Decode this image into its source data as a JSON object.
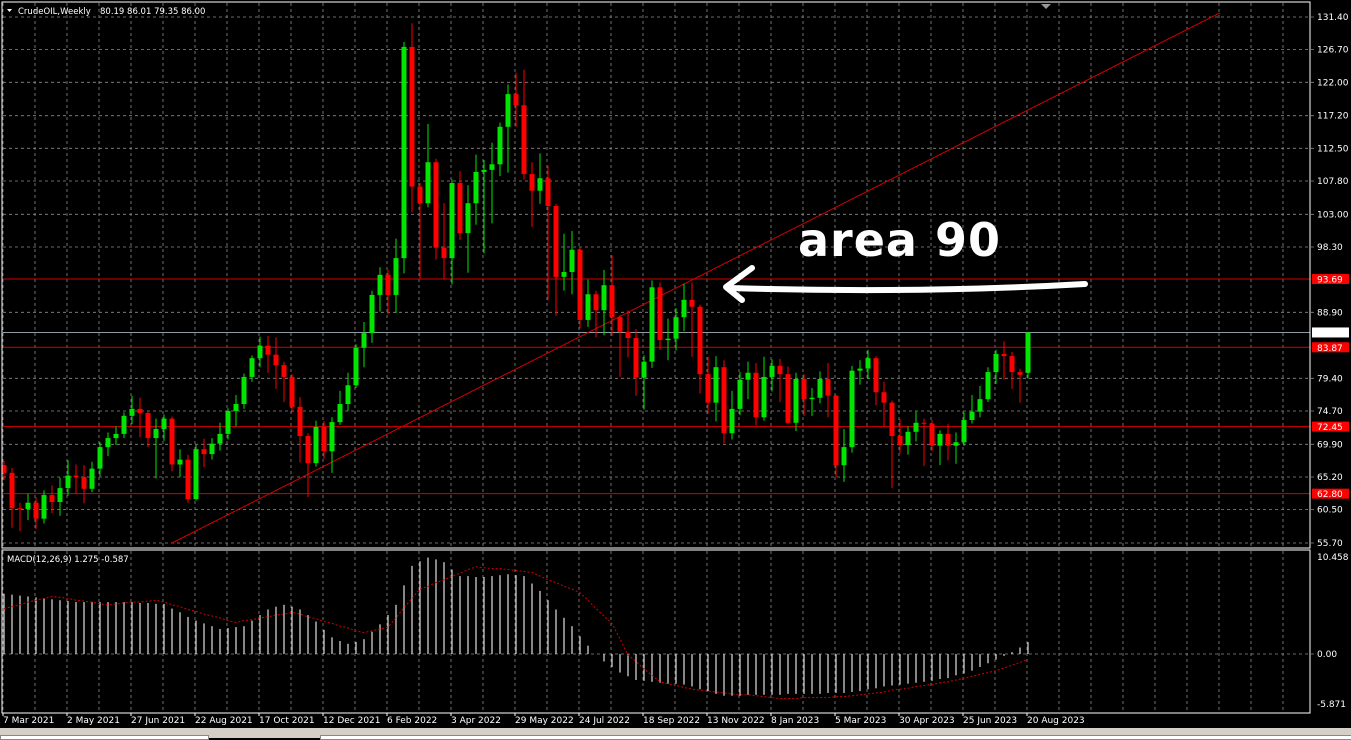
{
  "header": {
    "symbol": "CrudeOIL,Weekly",
    "ohlc_text": "80.19 86.01 79.35 86.00"
  },
  "macd_label": "MACD(12,26,9) 1.275 -0.587",
  "annotation": {
    "text": "area 90",
    "color": "#ffffff"
  },
  "colors": {
    "bull": "#00e600",
    "bear": "#ff0000",
    "grid": "#8a8a8a",
    "level": "#d40000",
    "macd_hist": "#e0e0e0",
    "macd_signal": "#d40000"
  },
  "chart_data": [
    {
      "type": "candlestick",
      "title": "CrudeOIL,Weekly",
      "ylim": [
        55.7,
        131.4
      ],
      "grid": true,
      "y_ticks": [
        "131.40",
        "126.70",
        "122.00",
        "117.20",
        "112.50",
        "107.80",
        "103.00",
        "98.30",
        "88.90",
        "79.40",
        "74.70",
        "69.90",
        "65.20",
        "60.50",
        "55.70"
      ],
      "x_tick_labels": [
        "7 Mar 2021",
        "2 May 2021",
        "27 Jun 2021",
        "22 Aug 2021",
        "17 Oct 2021",
        "12 Dec 2021",
        "6 Feb 2022",
        "3 Apr 2022",
        "29 May 2022",
        "24 Jul 2022",
        "18 Sep 2022",
        "13 Nov 2022",
        "8 Jan 2023",
        "5 Mar 2023",
        "30 Apr 2023",
        "25 Jun 2023",
        "20 Aug 2023"
      ],
      "levels": [
        {
          "value": 93.69,
          "label": "93.69"
        },
        {
          "value": 83.87,
          "label": "83.87"
        },
        {
          "value": 72.45,
          "label": "72.45"
        },
        {
          "value": 62.8,
          "label": "62.80"
        }
      ],
      "current_price": {
        "value": 86.0,
        "label": "86.00"
      },
      "trendline": {
        "from": {
          "bar": 21,
          "price": 55.7
        },
        "to": {
          "bar": 152,
          "price": 132.0
        }
      },
      "ohlc": [
        [
          66.9,
          67.5,
          64.8,
          65.8
        ],
        [
          65.8,
          66.5,
          57.9,
          60.7
        ],
        [
          60.7,
          61.5,
          57.4,
          60.6
        ],
        [
          60.6,
          62.8,
          59.0,
          61.5
        ],
        [
          61.5,
          62.3,
          57.7,
          59.2
        ],
        [
          59.2,
          63.3,
          58.5,
          62.6
        ],
        [
          62.6,
          64.0,
          60.0,
          61.6
        ],
        [
          61.6,
          65.1,
          59.6,
          63.6
        ],
        [
          63.6,
          67.6,
          62.5,
          65.4
        ],
        [
          65.4,
          67.0,
          62.8,
          65.2
        ],
        [
          65.2,
          66.9,
          61.4,
          63.5
        ],
        [
          63.5,
          67.4,
          63.0,
          66.4
        ],
        [
          66.4,
          70.2,
          65.3,
          69.5
        ],
        [
          69.5,
          71.6,
          68.2,
          70.8
        ],
        [
          70.8,
          72.5,
          69.8,
          71.4
        ],
        [
          71.4,
          74.5,
          70.8,
          74.0
        ],
        [
          74.0,
          76.9,
          72.8,
          75.0
        ],
        [
          75.0,
          76.6,
          70.9,
          74.4
        ],
        [
          74.4,
          74.7,
          69.5,
          70.8
        ],
        [
          70.8,
          73.6,
          65.0,
          72.1
        ],
        [
          72.1,
          74.2,
          70.4,
          73.6
        ],
        [
          73.6,
          73.9,
          66.0,
          67.0
        ],
        [
          67.0,
          69.2,
          65.2,
          67.7
        ],
        [
          67.7,
          68.4,
          61.5,
          62.0
        ],
        [
          62.0,
          69.8,
          61.8,
          69.2
        ],
        [
          69.2,
          70.7,
          66.6,
          68.5
        ],
        [
          68.5,
          70.8,
          67.7,
          70.0
        ],
        [
          70.0,
          73.0,
          69.0,
          71.4
        ],
        [
          71.4,
          75.1,
          70.6,
          74.7
        ],
        [
          74.7,
          77.0,
          72.5,
          75.7
        ],
        [
          75.7,
          80.1,
          75.0,
          79.6
        ],
        [
          79.6,
          82.7,
          78.9,
          82.3
        ],
        [
          82.3,
          85.4,
          81.0,
          84.1
        ],
        [
          84.1,
          85.5,
          80.2,
          82.8
        ],
        [
          82.8,
          85.3,
          77.9,
          81.3
        ],
        [
          81.3,
          81.8,
          76.0,
          79.6
        ],
        [
          79.6,
          80.0,
          74.5,
          75.3
        ],
        [
          75.3,
          76.7,
          67.3,
          71.1
        ],
        [
          71.1,
          71.5,
          62.3,
          67.2
        ],
        [
          67.2,
          73.3,
          66.7,
          72.4
        ],
        [
          72.4,
          73.3,
          67.8,
          68.9
        ],
        [
          68.9,
          73.8,
          65.8,
          73.1
        ],
        [
          73.1,
          77.6,
          72.7,
          75.7
        ],
        [
          75.7,
          80.2,
          74.7,
          78.4
        ],
        [
          78.4,
          84.3,
          78.0,
          83.8
        ],
        [
          83.8,
          87.5,
          81.0,
          85.9
        ],
        [
          85.9,
          92.0,
          84.5,
          91.4
        ],
        [
          91.4,
          95.4,
          89.0,
          94.3
        ],
        [
          94.3,
          95.0,
          88.6,
          91.4
        ],
        [
          91.4,
          99.5,
          88.8,
          96.7
        ],
        [
          96.7,
          127.8,
          94.5,
          127.1
        ],
        [
          127.1,
          130.5,
          103.3,
          107.0
        ],
        [
          107.0,
          107.5,
          93.8,
          104.6
        ],
        [
          104.6,
          116.0,
          104.0,
          110.5
        ],
        [
          110.5,
          111.0,
          96.5,
          98.2
        ],
        [
          98.2,
          104.6,
          93.6,
          96.7
        ],
        [
          96.7,
          108.0,
          92.9,
          107.5
        ],
        [
          107.5,
          109.2,
          99.3,
          100.3
        ],
        [
          100.3,
          107.2,
          94.6,
          104.6
        ],
        [
          104.6,
          111.6,
          101.5,
          109.1
        ],
        [
          109.1,
          110.8,
          97.4,
          109.4
        ],
        [
          109.4,
          113.3,
          101.7,
          110.2
        ],
        [
          110.2,
          116.2,
          108.5,
          115.6
        ],
        [
          115.6,
          121.7,
          109.0,
          120.3
        ],
        [
          120.3,
          123.4,
          115.6,
          118.7
        ],
        [
          118.7,
          123.8,
          108.0,
          108.8
        ],
        [
          108.8,
          110.5,
          101.2,
          106.4
        ],
        [
          106.4,
          111.8,
          104.5,
          108.2
        ],
        [
          108.2,
          110.0,
          90.6,
          104.2
        ],
        [
          104.2,
          104.5,
          88.4,
          94.0
        ],
        [
          94.0,
          100.2,
          92.0,
          94.7
        ],
        [
          94.7,
          100.6,
          91.5,
          97.9
        ],
        [
          97.9,
          98.3,
          86.6,
          87.8
        ],
        [
          87.8,
          93.6,
          86.8,
          91.5
        ],
        [
          91.5,
          92.0,
          85.3,
          89.2
        ],
        [
          89.2,
          95.0,
          85.6,
          92.8
        ],
        [
          92.8,
          97.1,
          85.5,
          88.2
        ],
        [
          88.2,
          88.5,
          79.6,
          86.1
        ],
        [
          86.1,
          89.2,
          82.4,
          85.2
        ],
        [
          85.2,
          86.5,
          76.9,
          79.5
        ],
        [
          79.5,
          82.7,
          74.9,
          81.8
        ],
        [
          81.8,
          93.5,
          80.9,
          92.5
        ],
        [
          92.5,
          93.2,
          83.5,
          84.9
        ],
        [
          84.9,
          88.0,
          82.0,
          85.1
        ],
        [
          85.1,
          89.5,
          83.4,
          88.2
        ],
        [
          88.2,
          93.0,
          86.2,
          90.7
        ],
        [
          90.7,
          93.2,
          82.5,
          89.7
        ],
        [
          89.7,
          90.0,
          77.2,
          80.0
        ],
        [
          80.0,
          82.5,
          74.3,
          75.9
        ],
        [
          75.9,
          82.6,
          73.2,
          81.0
        ],
        [
          81.0,
          82.0,
          70.1,
          71.5
        ],
        [
          71.5,
          77.6,
          70.6,
          75.0
        ],
        [
          75.0,
          80.3,
          74.1,
          79.2
        ],
        [
          79.2,
          81.8,
          76.4,
          80.2
        ],
        [
          80.2,
          81.6,
          72.6,
          73.8
        ],
        [
          73.8,
          82.5,
          73.3,
          79.6
        ],
        [
          79.6,
          82.1,
          77.5,
          81.2
        ],
        [
          81.2,
          82.2,
          76.0,
          80.0
        ],
        [
          80.0,
          81.1,
          72.9,
          73.0
        ],
        [
          73.0,
          80.2,
          71.8,
          79.3
        ],
        [
          79.3,
          80.0,
          74.0,
          76.4
        ],
        [
          76.4,
          78.0,
          74.0,
          76.6
        ],
        [
          76.6,
          80.4,
          75.8,
          79.3
        ],
        [
          79.3,
          81.6,
          73.8,
          76.9
        ],
        [
          76.9,
          77.0,
          65.2,
          66.9
        ],
        [
          66.9,
          72.1,
          64.5,
          69.5
        ],
        [
          69.5,
          81.2,
          68.7,
          80.5
        ],
        [
          80.5,
          82.0,
          78.5,
          80.8
        ],
        [
          80.8,
          83.5,
          79.3,
          82.3
        ],
        [
          82.3,
          82.6,
          75.5,
          77.4
        ],
        [
          77.4,
          78.9,
          72.4,
          75.9
        ],
        [
          75.9,
          76.2,
          63.6,
          71.1
        ],
        [
          71.1,
          73.5,
          68.6,
          69.8
        ],
        [
          69.8,
          72.5,
          68.4,
          71.7
        ],
        [
          71.7,
          74.6,
          70.3,
          73.0
        ],
        [
          73.0,
          73.6,
          66.8,
          72.9
        ],
        [
          72.9,
          73.4,
          68.9,
          69.7
        ],
        [
          69.7,
          71.9,
          66.9,
          71.4
        ],
        [
          71.4,
          72.8,
          67.6,
          69.7
        ],
        [
          69.7,
          71.6,
          67.1,
          70.2
        ],
        [
          70.2,
          74.5,
          69.7,
          73.4
        ],
        [
          73.4,
          77.0,
          72.9,
          74.6
        ],
        [
          74.6,
          78.3,
          73.8,
          76.4
        ],
        [
          76.4,
          81.0,
          76.0,
          80.3
        ],
        [
          80.3,
          83.5,
          78.6,
          82.9
        ],
        [
          82.9,
          84.7,
          79.2,
          82.6
        ],
        [
          82.6,
          83.2,
          77.9,
          80.3
        ],
        [
          80.3,
          80.8,
          75.9,
          79.9
        ],
        [
          80.19,
          86.01,
          79.35,
          86.0
        ]
      ]
    },
    {
      "type": "bar+line",
      "title": "MACD(12,26,9)",
      "ylim": [
        -5.871,
        10.458
      ],
      "y_ticks": [
        "10.458",
        "0.00",
        "-5.871"
      ],
      "histogram": [
        6.5,
        6.4,
        6.3,
        6.2,
        6.1,
        6.0,
        5.9,
        5.8,
        5.7,
        5.6,
        5.6,
        5.6,
        5.6,
        5.6,
        5.6,
        5.6,
        5.6,
        5.5,
        5.5,
        5.4,
        5.4,
        4.9,
        4.5,
        4.0,
        3.6,
        3.3,
        3.0,
        2.7,
        2.8,
        2.9,
        3.0,
        3.6,
        4.2,
        4.8,
        5.1,
        5.3,
        5.1,
        4.8,
        4.2,
        3.5,
        2.6,
        1.8,
        1.4,
        1.1,
        1.3,
        1.6,
        2.4,
        3.2,
        4.2,
        5.3,
        7.4,
        9.5,
        10.0,
        10.4,
        10.2,
        9.9,
        9.1,
        8.4,
        8.4,
        8.3,
        8.3,
        8.4,
        8.5,
        8.6,
        8.5,
        8.4,
        7.6,
        6.8,
        5.8,
        4.8,
        3.9,
        3.0,
        1.9,
        0.9,
        0.0,
        -0.8,
        -1.4,
        -2.0,
        -2.4,
        -2.8,
        -2.9,
        -3.0,
        -3.1,
        -3.2,
        -3.2,
        -3.3,
        -3.5,
        -3.8,
        -4.0,
        -4.3,
        -4.5,
        -4.5,
        -4.5,
        -4.4,
        -4.4,
        -4.4,
        -4.4,
        -4.4,
        -4.3,
        -4.3,
        -4.3,
        -4.3,
        -4.3,
        -4.2,
        -4.2,
        -4.2,
        -4.1,
        -4.0,
        -3.8,
        -3.7,
        -3.5,
        -3.4,
        -3.3,
        -3.2,
        -3.1,
        -3.0,
        -2.9,
        -2.7,
        -2.6,
        -2.3,
        -2.1,
        -1.8,
        -1.4,
        -1.0,
        -0.6,
        -0.2,
        0.2,
        0.7,
        1.275
      ],
      "signal": [
        4.9,
        5.1,
        5.3,
        5.6,
        5.8,
        6.0,
        6.2,
        6.1,
        6.0,
        5.8,
        5.7,
        5.6,
        5.4,
        5.3,
        5.4,
        5.5,
        5.6,
        5.6,
        5.7,
        5.8,
        5.6,
        5.3,
        5.1,
        4.8,
        4.6,
        4.3,
        4.1,
        3.9,
        3.6,
        3.4,
        3.6,
        3.7,
        3.9,
        4.0,
        4.2,
        4.3,
        4.5,
        4.3,
        4.0,
        3.8,
        3.5,
        3.3,
        3.0,
        2.8,
        2.5,
        2.3,
        2.5,
        2.7,
        2.9,
        3.9,
        5.0,
        6.0,
        7.0,
        7.3,
        7.7,
        8.0,
        8.4,
        8.7,
        9.1,
        9.4,
        9.3,
        9.2,
        9.2,
        9.1,
        9.0,
        8.9,
        8.8,
        8.4,
        8.0,
        7.7,
        7.3,
        7.0,
        6.6,
        5.8,
        4.9,
        4.1,
        3.3,
        1.6,
        -0.1,
        -0.8,
        -1.6,
        -2.3,
        -3.0,
        -3.2,
        -3.4,
        -3.6,
        -3.8,
        -3.9,
        -4.0,
        -4.1,
        -4.2,
        -4.3,
        -4.4,
        -4.4,
        -4.5,
        -4.6,
        -4.7,
        -4.8,
        -4.8,
        -4.8,
        -4.7,
        -4.7,
        -4.7,
        -4.7,
        -4.6,
        -4.6,
        -4.5,
        -4.4,
        -4.3,
        -4.2,
        -4.1,
        -3.9,
        -3.8,
        -3.7,
        -3.5,
        -3.4,
        -3.3,
        -3.1,
        -3.0,
        -2.8,
        -2.6,
        -2.4,
        -2.2,
        -2.0,
        -1.8,
        -1.5,
        -1.2,
        -0.9,
        -0.587
      ]
    }
  ]
}
